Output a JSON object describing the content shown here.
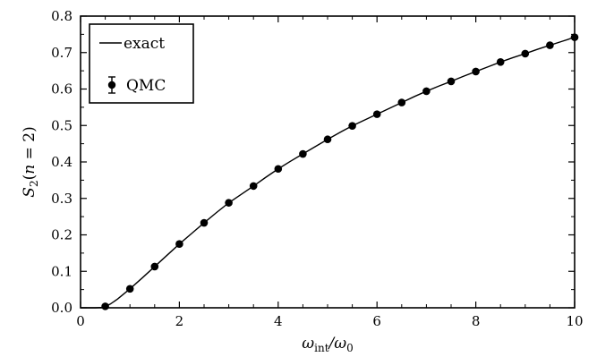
{
  "chart_data": {
    "type": "line",
    "xlabel": "ω_int/ω_0",
    "ylabel": "S_2(n = 2)",
    "xlim": [
      0,
      10
    ],
    "ylim": [
      0,
      0.8
    ],
    "x_ticks": [
      0,
      2,
      4,
      6,
      8,
      10
    ],
    "y_ticks": [
      0.0,
      0.1,
      0.2,
      0.3,
      0.4,
      0.5,
      0.6,
      0.7,
      0.8
    ],
    "x_tick_labels": [
      "0",
      "2",
      "4",
      "6",
      "8",
      "10"
    ],
    "y_tick_labels": [
      "0.0",
      "0.1",
      "0.2",
      "0.3",
      "0.4",
      "0.5",
      "0.6",
      "0.7",
      "0.8"
    ],
    "legend_placement": "top-left",
    "series": [
      {
        "name": "exact",
        "style": "line",
        "color": "#000000",
        "x": [
          0,
          0.3,
          0.45,
          0.5,
          0.6,
          0.75,
          1.0,
          1.25,
          1.5,
          1.75,
          2.0,
          2.25,
          2.5,
          2.75,
          3.0,
          3.25,
          3.5,
          3.75,
          4.0,
          4.25,
          4.5,
          4.75,
          5.0,
          5.25,
          5.5,
          5.75,
          6.0,
          6.25,
          6.5,
          6.75,
          7.0,
          7.25,
          7.5,
          7.75,
          8.0,
          8.25,
          8.5,
          8.75,
          9.0,
          9.25,
          9.5,
          9.75,
          10.0
        ],
        "y": [
          0,
          0,
          0.001,
          0.004,
          0.01,
          0.024,
          0.052,
          0.082,
          0.113,
          0.144,
          0.175,
          0.204,
          0.233,
          0.261,
          0.288,
          0.311,
          0.334,
          0.358,
          0.381,
          0.402,
          0.422,
          0.442,
          0.462,
          0.481,
          0.499,
          0.515,
          0.531,
          0.547,
          0.563,
          0.579,
          0.594,
          0.608,
          0.621,
          0.635,
          0.648,
          0.661,
          0.674,
          0.686,
          0.697,
          0.709,
          0.72,
          0.731,
          0.742
        ]
      },
      {
        "name": "QMC",
        "style": "markers",
        "color": "#000000",
        "x": [
          0.5,
          1.0,
          1.5,
          2.0,
          2.5,
          3.0,
          3.5,
          4.0,
          4.5,
          5.0,
          5.5,
          6.0,
          6.5,
          7.0,
          7.5,
          8.0,
          8.5,
          9.0,
          9.5,
          10.0
        ],
        "y": [
          0.004,
          0.052,
          0.113,
          0.175,
          0.233,
          0.288,
          0.334,
          0.381,
          0.422,
          0.462,
          0.499,
          0.531,
          0.563,
          0.594,
          0.621,
          0.648,
          0.674,
          0.697,
          0.72,
          0.742
        ]
      }
    ]
  },
  "legend": {
    "line_label": "exact",
    "marker_label": "QMC"
  }
}
